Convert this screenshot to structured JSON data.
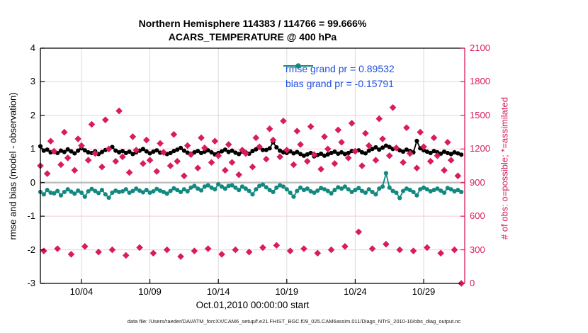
{
  "figure": {
    "title_line1": "Northern Hemisphere 114383 / 114766 = 99.666%",
    "title_line2": "ACARS_TEMPERATURE @ 400 hPa",
    "xlabel": "Oct.01,2010 00:00:00 start",
    "ylabel_left": "rmse and bias (model - observation)",
    "ylabel_right": "# of obs: o=possible; *=assimilated",
    "footer": "data file: /Users/raeder/DAI/ATM_forcXX/CAM6_setup/f.e21.FHIST_BGC.f09_025.CAM6assim.011/Diags_NTrS_2010-10/obs_diag_output.nc"
  },
  "legend": {
    "items": [
      {
        "label": "rmse grand pr = 0.89532",
        "color": "#000000"
      },
      {
        "label": "bias grand pr = -0.15791",
        "color": "#12897F"
      }
    ],
    "text_color": "#1F4FE0"
  },
  "colors": {
    "obs_marker": "#D81C5C",
    "right_axis": "#D81C5C",
    "grid_horizontal": "#F6C9D8",
    "grid_vertical": "#DCDCDC",
    "zero_line": "#BDBDBD",
    "rmse_line": "#000000",
    "bias_line": "#12897F",
    "spine": "#000000"
  },
  "chart_data": {
    "type": "line",
    "title": "Northern Hemisphere 114383 / 114766 = 99.666% — ACARS_TEMPERATURE @ 400 hPa",
    "x_axis": {
      "range_days": [
        0,
        31
      ],
      "tick_days": [
        3,
        8,
        13,
        18,
        23,
        28
      ],
      "tick_labels": [
        "10/04",
        "10/09",
        "10/14",
        "10/19",
        "10/24",
        "10/29"
      ],
      "label": "Oct.01,2010 00:00:00 start"
    },
    "y_left": {
      "label": "rmse and bias (model - observation)",
      "range": [
        -3,
        4
      ],
      "tick_values": [
        4,
        3,
        2,
        1,
        0,
        -1,
        -2,
        -3
      ],
      "tick_labels": [
        "4",
        "3",
        "2",
        "1",
        "0",
        "-1",
        "-2",
        "-3"
      ]
    },
    "y_right": {
      "label": "# of obs: o=possible; *=assimilated",
      "range": [
        0,
        2100
      ],
      "tick_values": [
        2100,
        1800,
        1500,
        1200,
        900,
        600,
        300,
        0
      ],
      "tick_labels": [
        "2100",
        "1800",
        "1500",
        "1200",
        "900",
        "600",
        "300",
        "0"
      ]
    },
    "time_step_days": 0.25,
    "grid": true,
    "legend_position": "top-right-inside",
    "series": [
      {
        "name": "rmse",
        "axis": "left",
        "grand_mean": 0.89532,
        "values": [
          1.08,
          0.95,
          0.98,
          0.9,
          0.92,
          0.88,
          0.95,
          0.91,
          0.99,
          0.93,
          0.87,
          0.95,
          1.02,
          0.96,
          0.9,
          0.88,
          0.93,
          0.85,
          0.91,
          0.97,
          1.0,
          1.06,
          0.95,
          0.9,
          0.94,
          0.88,
          0.92,
          0.85,
          0.9,
          0.95,
          1.0,
          0.93,
          0.87,
          0.92,
          0.96,
          0.89,
          0.91,
          0.85,
          0.88,
          0.94,
          0.98,
          1.03,
          0.95,
          0.89,
          0.86,
          0.9,
          0.94,
          0.88,
          0.92,
          0.96,
          0.9,
          0.84,
          0.88,
          0.93,
          0.98,
          0.91,
          0.95,
          0.89,
          0.85,
          0.92,
          0.9,
          0.86,
          0.94,
          0.99,
          1.04,
          0.97,
          0.97,
          1.02,
          1.2,
          1.05,
          0.95,
          0.9,
          0.88,
          0.93,
          0.87,
          0.91,
          0.85,
          0.8,
          0.84,
          0.88,
          0.78,
          0.82,
          0.86,
          0.8,
          0.84,
          0.88,
          0.92,
          0.86,
          0.9,
          0.85,
          0.88,
          0.94,
          0.92,
          0.96,
          0.9,
          0.87,
          0.95,
          1.0,
          1.05,
          0.98,
          1.04,
          1.1,
          1.06,
          1.0,
          1.02,
          0.96,
          0.92,
          0.98,
          0.94,
          0.9,
          1.24,
          1.02,
          0.96,
          0.92,
          0.88,
          0.94,
          0.9,
          0.86,
          0.92,
          0.88,
          0.85,
          0.9,
          0.87,
          0.83
        ]
      },
      {
        "name": "bias",
        "axis": "left",
        "grand_mean": -0.15791,
        "values": [
          -0.28,
          -0.35,
          -0.22,
          -0.3,
          -0.32,
          -0.25,
          -0.38,
          -0.28,
          -0.2,
          -0.27,
          -0.33,
          -0.24,
          -0.3,
          -0.42,
          -0.26,
          -0.19,
          -0.25,
          -0.31,
          -0.22,
          -0.35,
          -0.45,
          -0.3,
          -0.24,
          -0.28,
          -0.26,
          -0.2,
          -0.3,
          -0.25,
          -0.18,
          -0.24,
          -0.29,
          -0.22,
          -0.3,
          -0.26,
          -0.19,
          -0.24,
          -0.28,
          -0.33,
          -0.25,
          -0.17,
          -0.22,
          -0.28,
          -0.2,
          -0.26,
          -0.15,
          -0.1,
          -0.18,
          -0.23,
          -0.12,
          -0.08,
          -0.15,
          -0.2,
          -0.05,
          -0.12,
          -0.18,
          -0.1,
          -0.08,
          -0.15,
          -0.22,
          -0.12,
          -0.18,
          -0.25,
          -0.35,
          -0.2,
          -0.1,
          -0.06,
          -0.14,
          -0.22,
          -0.28,
          -0.15,
          -0.08,
          -0.12,
          -0.2,
          -0.3,
          -0.42,
          -0.25,
          -0.15,
          -0.22,
          -0.18,
          -0.26,
          -0.3,
          -0.24,
          -0.16,
          -0.2,
          -0.25,
          -0.32,
          -0.22,
          -0.14,
          -0.18,
          -0.12,
          -0.2,
          -0.28,
          -0.22,
          -0.16,
          -0.25,
          -0.3,
          -0.2,
          -0.28,
          -0.35,
          -0.18,
          -0.12,
          0.28,
          -0.15,
          -0.25,
          -0.3,
          -0.46,
          -0.25,
          -0.18,
          -0.22,
          -0.28,
          -0.38,
          -0.2,
          -0.15,
          -0.2,
          -0.26,
          -0.22,
          -0.18,
          -0.24,
          -0.3,
          -0.16,
          -0.2,
          -0.26,
          -0.22,
          -0.28
        ]
      },
      {
        "name": "obs_assimilated",
        "axis": "right",
        "values": [
          1050,
          290,
          980,
          1270,
          1180,
          310,
          1060,
          1350,
          1120,
          260,
          1010,
          1290,
          1230,
          330,
          1100,
          1420,
          1160,
          280,
          1040,
          1460,
          1200,
          300,
          1090,
          1540,
          1130,
          250,
          990,
          1310,
          1190,
          320,
          1070,
          1280,
          1100,
          270,
          1000,
          1250,
          1170,
          300,
          1050,
          1330,
          1090,
          240,
          960,
          1230,
          1150,
          290,
          1030,
          1300,
          1210,
          310,
          1080,
          1270,
          1140,
          260,
          1010,
          1240,
          1080,
          300,
          970,
          1190,
          1160,
          280,
          1040,
          1300,
          1220,
          320,
          1110,
          1380,
          1280,
          340,
          1130,
          1450,
          1190,
          290,
          1060,
          1360,
          1240,
          310,
          1090,
          1400,
          1150,
          270,
          1020,
          1310,
          1200,
          300,
          1070,
          1370,
          1260,
          330,
          1120,
          1430,
          1180,
          460,
          1050,
          1340,
          1230,
          310,
          1100,
          1470,
          1290,
          350,
          1140,
          1570,
          1210,
          300,
          1080,
          1390,
          1160,
          290,
          1030,
          1350,
          1220,
          320,
          1090,
          1300,
          1140,
          270,
          1010,
          1260,
          1100,
          300,
          960,
          0
        ]
      }
    ]
  }
}
